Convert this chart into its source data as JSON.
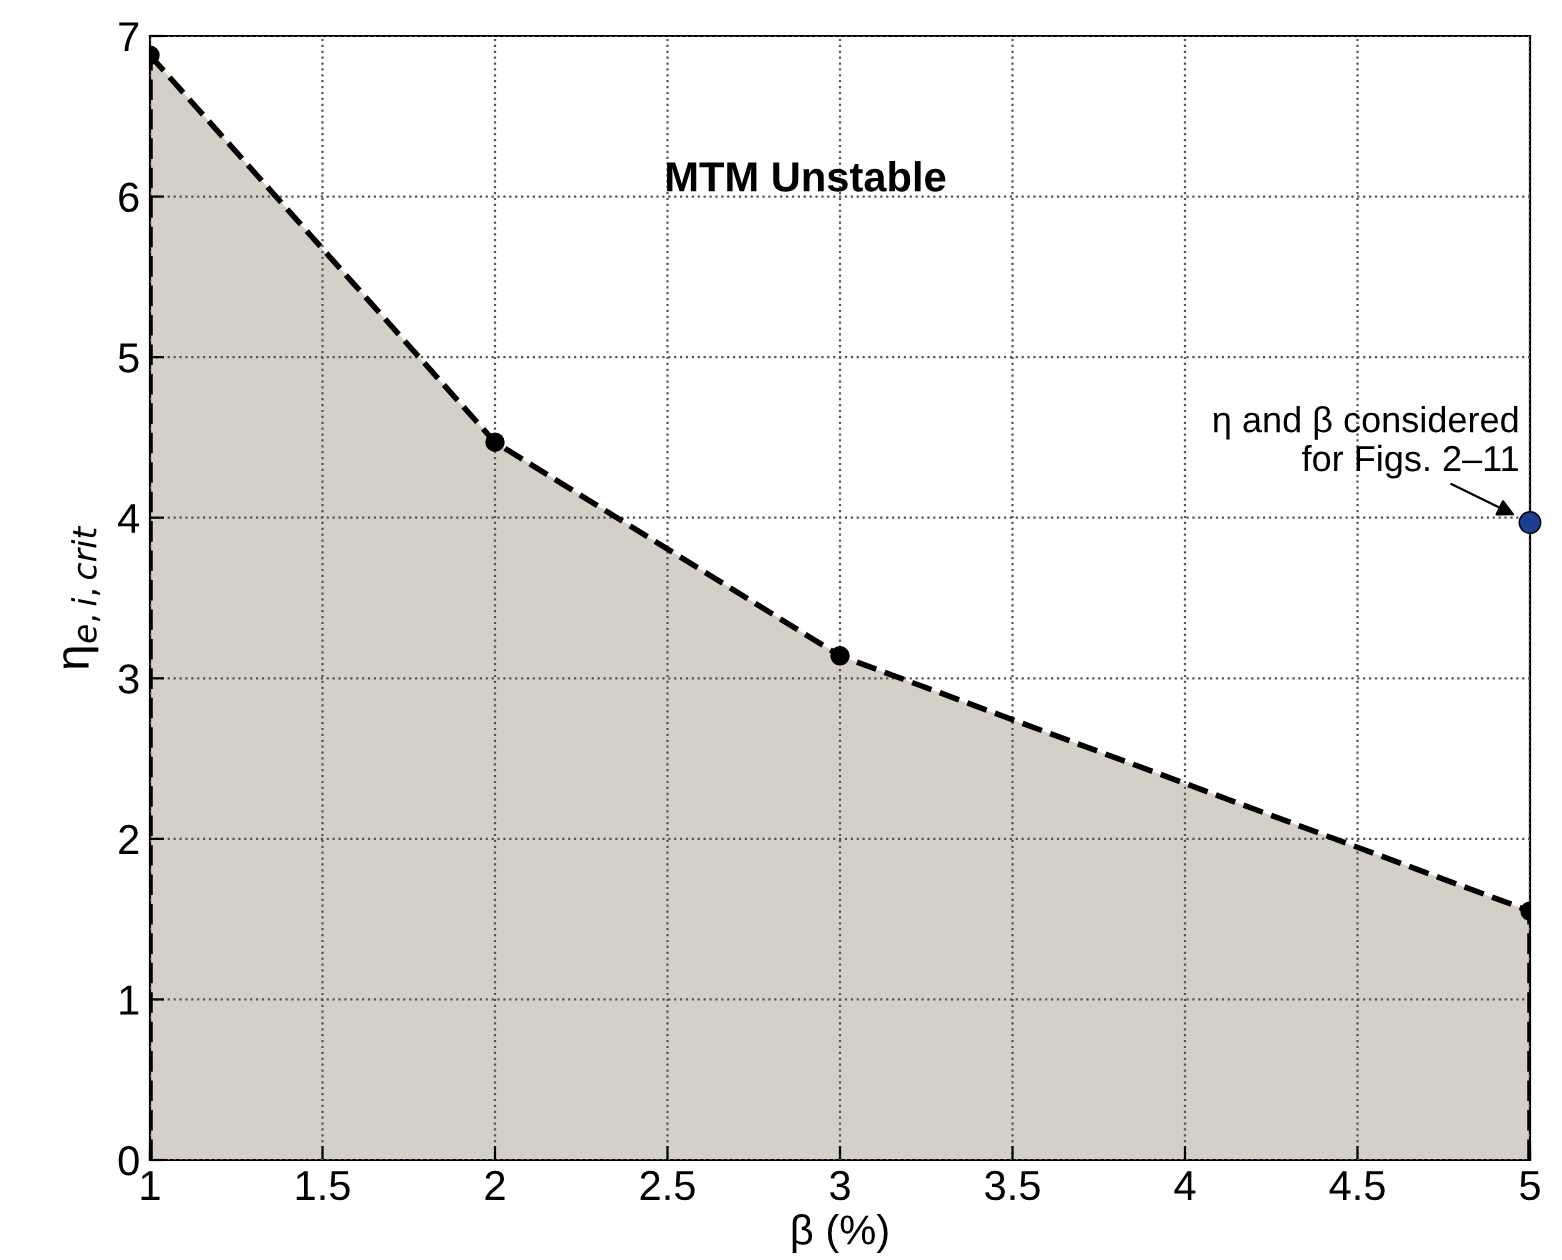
{
  "chart_data": {
    "type": "area",
    "xlabel": "β (%)",
    "ylabel": "η$_{e,i,crit}$",
    "xlim": [
      1,
      5
    ],
    "ylim": [
      0,
      7
    ],
    "xticks": [
      1,
      1.5,
      2,
      2.5,
      3,
      3.5,
      4,
      4.5,
      5
    ],
    "yticks": [
      0,
      1,
      2,
      3,
      4,
      5,
      6,
      7
    ],
    "grid": true,
    "marker": "circle",
    "line_style": "dashed",
    "series": [
      {
        "color": "#d4d0c8",
        "x": [
          1,
          2,
          3,
          5
        ],
        "values": [
          6.88,
          4.47,
          3.14,
          1.55
        ]
      },
      {
        "type": "scatter",
        "color": "#1c3f94",
        "x": [
          5
        ],
        "values": [
          3.97
        ]
      }
    ],
    "annotations": [
      "MTM Unstable",
      {
        "text": "η and β considered\nfor Figs. 2–11",
        "x": 5,
        "y": 3.97
      }
    ]
  }
}
